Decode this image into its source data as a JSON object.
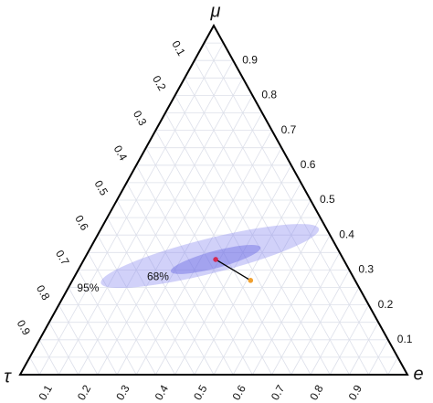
{
  "chart_data": {
    "type": "ternary",
    "axes": {
      "top": "μ",
      "left": "τ",
      "right": "e"
    },
    "ticks": [
      0.1,
      0.2,
      0.3,
      0.4,
      0.5,
      0.6,
      0.7,
      0.8,
      0.9
    ],
    "minor_ticks": [
      0.05,
      0.15,
      0.25,
      0.35,
      0.45,
      0.55,
      0.65,
      0.75,
      0.85,
      0.95
    ],
    "grid": true,
    "ellipses": [
      {
        "label": "95%",
        "tau": 0.34,
        "mu": 0.34,
        "e": 0.32,
        "rx": 0.29,
        "ry": 0.045,
        "angle": -14,
        "color": "#8c8cf0"
      },
      {
        "label": "68%",
        "tau": 0.33,
        "mu": 0.33,
        "e": 0.34,
        "rx": 0.12,
        "ry": 0.022,
        "angle": -15,
        "color": "#6060e0"
      }
    ],
    "points": [
      {
        "tau": 0.33,
        "mu": 0.33,
        "e": 0.34,
        "color": "#d42a52"
      },
      {
        "tau": 0.27,
        "mu": 0.27,
        "e": 0.46,
        "color": "#f0a030"
      }
    ]
  }
}
